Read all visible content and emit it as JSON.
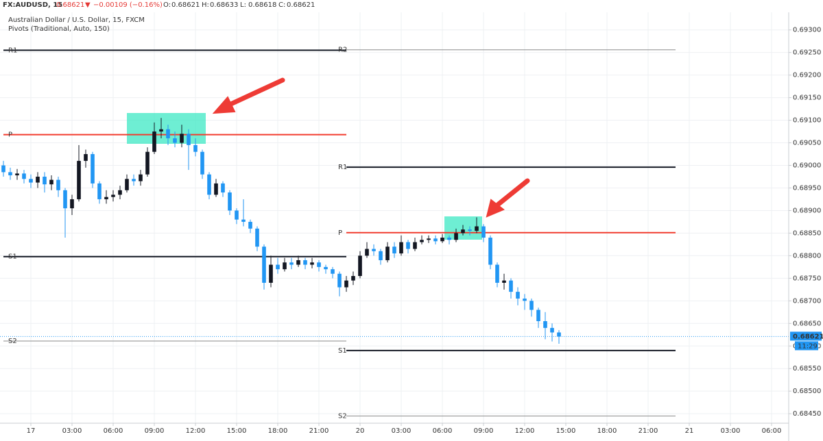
{
  "chart_data": {
    "type": "candlestick",
    "symbol": "FX:AUDUSD, 15",
    "last": "0.68621",
    "change_arrow": "▼",
    "change": "−0.00109 (−0.16%)",
    "ohlc_header": [
      {
        "key": "O:",
        "value": "0.68621"
      },
      {
        "key": "H:",
        "value": "0.68633"
      },
      {
        "key": "L:",
        "value": "0.68618"
      },
      {
        "key": "C:",
        "value": "0.68621"
      }
    ],
    "title": "Australian Dollar / U.S. Dollar, 15, FXCM",
    "subtitle": "Pivots (Traditional, Auto, 150)",
    "up_color": "#131722",
    "down_color": "#2196f3",
    "xlim": [
      -2,
      55.25
    ],
    "ylim": [
      0.68429,
      0.69339
    ],
    "grid": true,
    "xticks": [
      {
        "value": 0,
        "label": "17"
      },
      {
        "value": 3,
        "label": "03:00"
      },
      {
        "value": 6,
        "label": "06:00"
      },
      {
        "value": 9,
        "label": "09:00"
      },
      {
        "value": 12,
        "label": "12:00"
      },
      {
        "value": 15,
        "label": "15:00"
      },
      {
        "value": 18,
        "label": "18:00"
      },
      {
        "value": 21,
        "label": "21:00"
      },
      {
        "value": 24,
        "label": "20"
      },
      {
        "value": 27,
        "label": "03:00"
      },
      {
        "value": 30,
        "label": "06:00"
      },
      {
        "value": 33,
        "label": "09:00"
      },
      {
        "value": 36,
        "label": "12:00"
      },
      {
        "value": 39,
        "label": "15:00"
      },
      {
        "value": 42,
        "label": "18:00"
      },
      {
        "value": 45,
        "label": "21:00"
      },
      {
        "value": 48,
        "label": "21"
      },
      {
        "value": 51,
        "label": "03:00"
      },
      {
        "value": 54,
        "label": "06:00"
      }
    ],
    "yticks": [
      {
        "value": 0.693,
        "label": "0.69300"
      },
      {
        "value": 0.6925,
        "label": "0.69250"
      },
      {
        "value": 0.692,
        "label": "0.69200"
      },
      {
        "value": 0.6915,
        "label": "0.69150"
      },
      {
        "value": 0.691,
        "label": "0.69100"
      },
      {
        "value": 0.6905,
        "label": "0.69050"
      },
      {
        "value": 0.69,
        "label": "0.69000"
      },
      {
        "value": 0.6895,
        "label": "0.68950"
      },
      {
        "value": 0.689,
        "label": "0.68900"
      },
      {
        "value": 0.6885,
        "label": "0.68850"
      },
      {
        "value": 0.688,
        "label": "0.68800"
      },
      {
        "value": 0.6875,
        "label": "0.68750"
      },
      {
        "value": 0.687,
        "label": "0.68700"
      },
      {
        "value": 0.6865,
        "label": "0.68650"
      },
      {
        "value": 0.686,
        "label": "0.68600"
      },
      {
        "value": 0.6855,
        "label": "0.68550"
      },
      {
        "value": 0.685,
        "label": "0.68500"
      },
      {
        "value": 0.6845,
        "label": "0.68450"
      }
    ],
    "pivots": [
      {
        "label": "R1",
        "value": 0.69255,
        "from": -2,
        "to": 23,
        "color": "#131722",
        "width": 2
      },
      {
        "label": "P",
        "value": 0.69068,
        "from": -2,
        "to": 23,
        "color": "#f23c2e",
        "width": 2
      },
      {
        "label": "S1",
        "value": 0.68798,
        "from": -2,
        "to": 23,
        "color": "#131722",
        "width": 2
      },
      {
        "label": "S2",
        "value": 0.68611,
        "from": -2,
        "to": 23,
        "color": "#8a8a8a",
        "width": 1
      },
      {
        "label": "R2",
        "value": 0.69256,
        "from": 23,
        "to": 47,
        "color": "#8a8a8a",
        "width": 1
      },
      {
        "label": "R1",
        "value": 0.68996,
        "from": 23,
        "to": 47,
        "color": "#131722",
        "width": 2
      },
      {
        "label": "P",
        "value": 0.68851,
        "from": 23,
        "to": 47,
        "color": "#f23c2e",
        "width": 2
      },
      {
        "label": "S1",
        "value": 0.6859,
        "from": 23,
        "to": 47,
        "color": "#131722",
        "width": 2
      },
      {
        "label": "S2",
        "value": 0.68445,
        "from": 23,
        "to": 47,
        "color": "#8a8a8a",
        "width": 1
      }
    ],
    "last_price": {
      "value": 0.68621,
      "label": "0.68621"
    },
    "countdown": "11:29",
    "x": [
      -2,
      -1.5,
      -1,
      -0.5,
      0,
      0.5,
      1,
      1.5,
      2,
      2.5,
      3,
      3.5,
      4,
      4.5,
      5,
      5.5,
      6,
      6.5,
      7,
      7.5,
      8,
      8.5,
      9,
      9.5,
      10,
      10.5,
      11,
      11.5,
      12,
      12.5,
      13,
      13.5,
      14,
      14.5,
      15,
      15.5,
      16,
      16.5,
      17,
      17.5,
      18,
      18.5,
      19,
      19.5,
      20,
      20.5,
      21,
      21.5,
      22,
      22.5,
      23,
      23.5,
      24,
      24.5,
      25,
      25.5,
      26,
      26.5,
      27,
      27.5,
      28,
      28.5,
      29,
      29.5,
      30,
      30.5,
      31,
      31.5,
      32,
      32.5,
      33,
      33.5,
      34,
      34.5,
      35,
      35.5,
      36,
      36.5,
      37,
      37.5,
      38,
      38.5
    ],
    "open": [
      0.69,
      0.68985,
      0.68978,
      0.68982,
      0.6897,
      0.68962,
      0.68975,
      0.68958,
      0.68968,
      0.68945,
      0.68905,
      0.68925,
      0.6901,
      0.69025,
      0.6896,
      0.68925,
      0.6893,
      0.68935,
      0.68945,
      0.6897,
      0.68965,
      0.6898,
      0.6903,
      0.69075,
      0.6908,
      0.6906,
      0.6905,
      0.6907,
      0.69045,
      0.6903,
      0.6898,
      0.68935,
      0.6896,
      0.6894,
      0.689,
      0.6888,
      0.68875,
      0.6886,
      0.6882,
      0.6874,
      0.6878,
      0.6877,
      0.68785,
      0.6878,
      0.6879,
      0.6878,
      0.68785,
      0.68775,
      0.6877,
      0.6876,
      0.6873,
      0.68745,
      0.68755,
      0.688,
      0.68815,
      0.6881,
      0.6879,
      0.6882,
      0.68805,
      0.6883,
      0.68815,
      0.6883,
      0.68835,
      0.68838,
      0.68832,
      0.6884,
      0.68835,
      0.6885,
      0.68858,
      0.68855,
      0.68865,
      0.6884,
      0.6878,
      0.6874,
      0.68745,
      0.6872,
      0.68705,
      0.687,
      0.6868,
      0.68655,
      0.6864,
      0.6863
    ],
    "high": [
      0.6901,
      0.68995,
      0.68992,
      0.6899,
      0.6898,
      0.68985,
      0.68985,
      0.68978,
      0.68975,
      0.6895,
      0.68935,
      0.69045,
      0.69035,
      0.6903,
      0.68965,
      0.68945,
      0.68945,
      0.68955,
      0.6898,
      0.6898,
      0.6899,
      0.6904,
      0.69095,
      0.69105,
      0.6909,
      0.69075,
      0.6909,
      0.6908,
      0.6906,
      0.69035,
      0.68985,
      0.6897,
      0.68965,
      0.68945,
      0.68905,
      0.68925,
      0.6888,
      0.68865,
      0.68825,
      0.688,
      0.68795,
      0.68795,
      0.68795,
      0.688,
      0.68795,
      0.68795,
      0.6879,
      0.6878,
      0.68775,
      0.68765,
      0.68755,
      0.68765,
      0.6881,
      0.6883,
      0.68825,
      0.68815,
      0.6883,
      0.6883,
      0.68845,
      0.68835,
      0.6884,
      0.68845,
      0.68845,
      0.68845,
      0.68848,
      0.68845,
      0.6886,
      0.68868,
      0.68865,
      0.68885,
      0.6887,
      0.68845,
      0.68785,
      0.6876,
      0.6875,
      0.6873,
      0.68715,
      0.68705,
      0.68685,
      0.68675,
      0.6865,
      0.68635
    ],
    "low": [
      0.68975,
      0.68968,
      0.68968,
      0.6896,
      0.6895,
      0.6895,
      0.6894,
      0.68945,
      0.6893,
      0.6884,
      0.6889,
      0.6892,
      0.68995,
      0.6895,
      0.68915,
      0.68915,
      0.6892,
      0.68925,
      0.6894,
      0.68955,
      0.68955,
      0.68975,
      0.69025,
      0.6906,
      0.69045,
      0.6904,
      0.6904,
      0.6899,
      0.6902,
      0.6897,
      0.68925,
      0.6893,
      0.6893,
      0.6889,
      0.6887,
      0.68865,
      0.6885,
      0.6881,
      0.68725,
      0.6873,
      0.6876,
      0.68765,
      0.6877,
      0.68775,
      0.6877,
      0.68772,
      0.68765,
      0.6876,
      0.6875,
      0.6871,
      0.6872,
      0.68735,
      0.6875,
      0.68795,
      0.688,
      0.6878,
      0.68785,
      0.68795,
      0.688,
      0.68805,
      0.6881,
      0.68825,
      0.68828,
      0.68825,
      0.68828,
      0.68825,
      0.6883,
      0.68845,
      0.68845,
      0.6885,
      0.6883,
      0.6877,
      0.6873,
      0.68725,
      0.68705,
      0.6869,
      0.6868,
      0.68665,
      0.6864,
      0.68615,
      0.6861,
      0.68605
    ],
    "close": [
      0.68985,
      0.68978,
      0.68982,
      0.6897,
      0.68962,
      0.68975,
      0.68958,
      0.68968,
      0.68945,
      0.68905,
      0.68925,
      0.6901,
      0.69025,
      0.6896,
      0.68925,
      0.6893,
      0.68935,
      0.68945,
      0.6897,
      0.68965,
      0.6898,
      0.6903,
      0.69075,
      0.6908,
      0.6906,
      0.6905,
      0.6907,
      0.69045,
      0.6903,
      0.6898,
      0.68935,
      0.6896,
      0.6894,
      0.689,
      0.6888,
      0.68875,
      0.6886,
      0.6882,
      0.6874,
      0.6878,
      0.6877,
      0.68785,
      0.6878,
      0.6879,
      0.6878,
      0.68785,
      0.68775,
      0.6877,
      0.6876,
      0.6873,
      0.68745,
      0.68755,
      0.688,
      0.68815,
      0.6881,
      0.6879,
      0.6882,
      0.68805,
      0.6883,
      0.68815,
      0.6883,
      0.68835,
      0.68838,
      0.68832,
      0.6884,
      0.68835,
      0.6885,
      0.68858,
      0.68855,
      0.68865,
      0.6884,
      0.6878,
      0.6874,
      0.68745,
      0.6872,
      0.68705,
      0.687,
      0.6868,
      0.68655,
      0.6864,
      0.6863,
      0.68621
    ]
  }
}
